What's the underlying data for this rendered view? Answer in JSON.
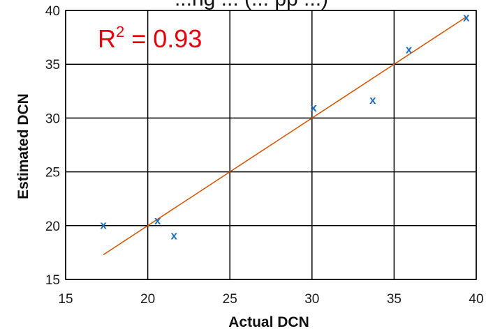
{
  "chart_data": {
    "type": "scatter",
    "title": "...ng ... (... pp ...)",
    "xlabel": "Actual DCN",
    "ylabel": "Estimated DCN",
    "xlim": [
      15,
      40
    ],
    "ylim": [
      15,
      40
    ],
    "xticks": [
      "15",
      "20",
      "25",
      "30",
      "35",
      "40"
    ],
    "yticks": [
      "15",
      "20",
      "25",
      "30",
      "35",
      "40"
    ],
    "grid": true,
    "points": [
      {
        "x": 17.3,
        "y": 20.1
      },
      {
        "x": 20.6,
        "y": 20.5
      },
      {
        "x": 21.6,
        "y": 19.1
      },
      {
        "x": 30.1,
        "y": 31.0
      },
      {
        "x": 33.7,
        "y": 31.7
      },
      {
        "x": 35.9,
        "y": 36.4
      },
      {
        "x": 39.4,
        "y": 39.4
      }
    ],
    "marker_symbol": "x",
    "fit_line": {
      "x": [
        17.3,
        39.4
      ],
      "y": [
        17.3,
        39.4
      ]
    },
    "annotation": {
      "prefix": "R",
      "superscript": "2",
      "suffix": " = 0.93"
    },
    "colors": {
      "points": "#1f6fbf",
      "fit_line": "#d35400",
      "annotation": "#e8000b",
      "grid": "#000000"
    }
  }
}
